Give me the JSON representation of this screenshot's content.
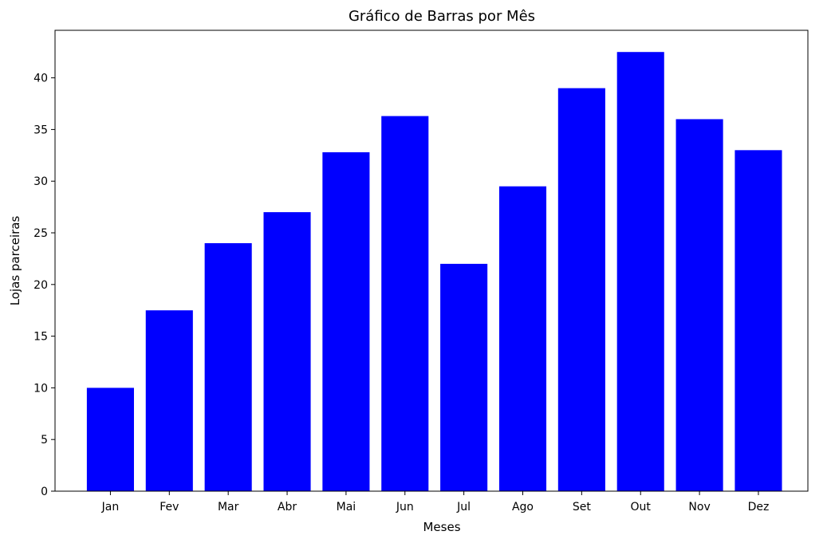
{
  "chart_data": {
    "type": "bar",
    "title": "Gráfico de Barras por Mês",
    "xlabel": "Meses",
    "ylabel": "Lojas parceiras",
    "categories": [
      "Jan",
      "Fev",
      "Mar",
      "Abr",
      "Mai",
      "Jun",
      "Jul",
      "Ago",
      "Set",
      "Out",
      "Nov",
      "Dez"
    ],
    "values": [
      10,
      17.5,
      24,
      27,
      32.8,
      36.3,
      22,
      29.5,
      39,
      42.5,
      36,
      33
    ],
    "ylim": [
      0,
      44.6
    ],
    "yticks": [
      0,
      5,
      10,
      15,
      20,
      25,
      30,
      35,
      40
    ],
    "bar_color": "#0000ff",
    "grid": false
  }
}
